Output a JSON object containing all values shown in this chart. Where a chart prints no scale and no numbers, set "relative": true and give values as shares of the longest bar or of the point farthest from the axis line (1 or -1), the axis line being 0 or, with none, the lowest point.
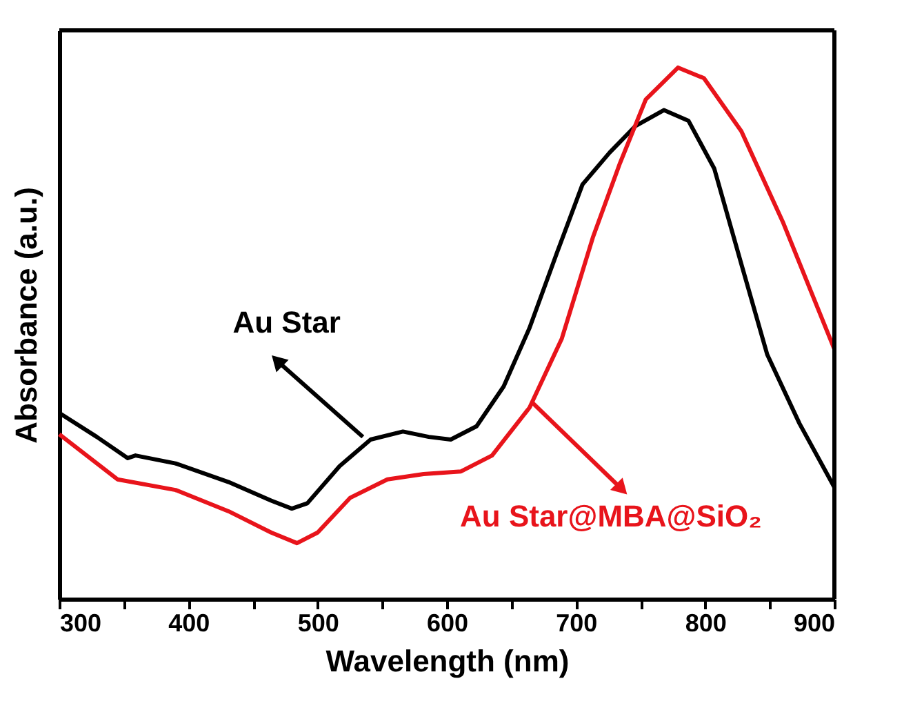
{
  "chart_data": {
    "type": "line",
    "relative": true,
    "xlabel": "Wavelength (nm)",
    "ylabel": "Absorbance (a.u.)",
    "xlim": [
      300,
      900
    ],
    "xticks": [
      300,
      {
        "value": 350,
        "label": null
      },
      400,
      {
        "value": 450,
        "label": null
      },
      500,
      {
        "value": 550,
        "label": null
      },
      600,
      {
        "value": 650,
        "label": null
      },
      700,
      {
        "value": 750,
        "label": null
      },
      800,
      {
        "value": 850,
        "label": null
      },
      900
    ],
    "tick_labels": "x",
    "grid": false,
    "line_style": "solid",
    "marker": "none",
    "series": [
      {
        "color": "#000000",
        "x": [
          300,
          329,
          353,
          359,
          390,
          431,
          464,
          480,
          492,
          517,
          541,
          566,
          586,
          603,
          623,
          644,
          664,
          685,
          705,
          726,
          746,
          768,
          787,
          807,
          828,
          848,
          873,
          900
        ],
        "values": [
          0.35,
          0.305,
          0.265,
          0.27,
          0.255,
          0.22,
          0.185,
          0.17,
          0.18,
          0.25,
          0.3,
          0.315,
          0.305,
          0.3,
          0.325,
          0.4,
          0.51,
          0.65,
          0.78,
          0.84,
          0.89,
          0.92,
          0.9,
          0.81,
          0.63,
          0.46,
          0.33,
          0.21
        ]
      },
      {
        "color": "#e8141b",
        "x": [
          300,
          345,
          390,
          431,
          464,
          484,
          500,
          525,
          554,
          582,
          611,
          635,
          664,
          689,
          713,
          734,
          754,
          779,
          799,
          828,
          860,
          900
        ],
        "values": [
          0.31,
          0.225,
          0.205,
          0.165,
          0.125,
          0.105,
          0.125,
          0.19,
          0.225,
          0.235,
          0.24,
          0.27,
          0.36,
          0.49,
          0.68,
          0.82,
          0.94,
          1.0,
          0.98,
          0.88,
          0.71,
          0.47
        ]
      }
    ],
    "annotations": [
      {
        "text": "Au Star",
        "x": 535,
        "y": 0.305
      },
      {
        "text": "Au Star@MBA@SiO₂",
        "x": 666,
        "y": 0.37
      }
    ]
  }
}
